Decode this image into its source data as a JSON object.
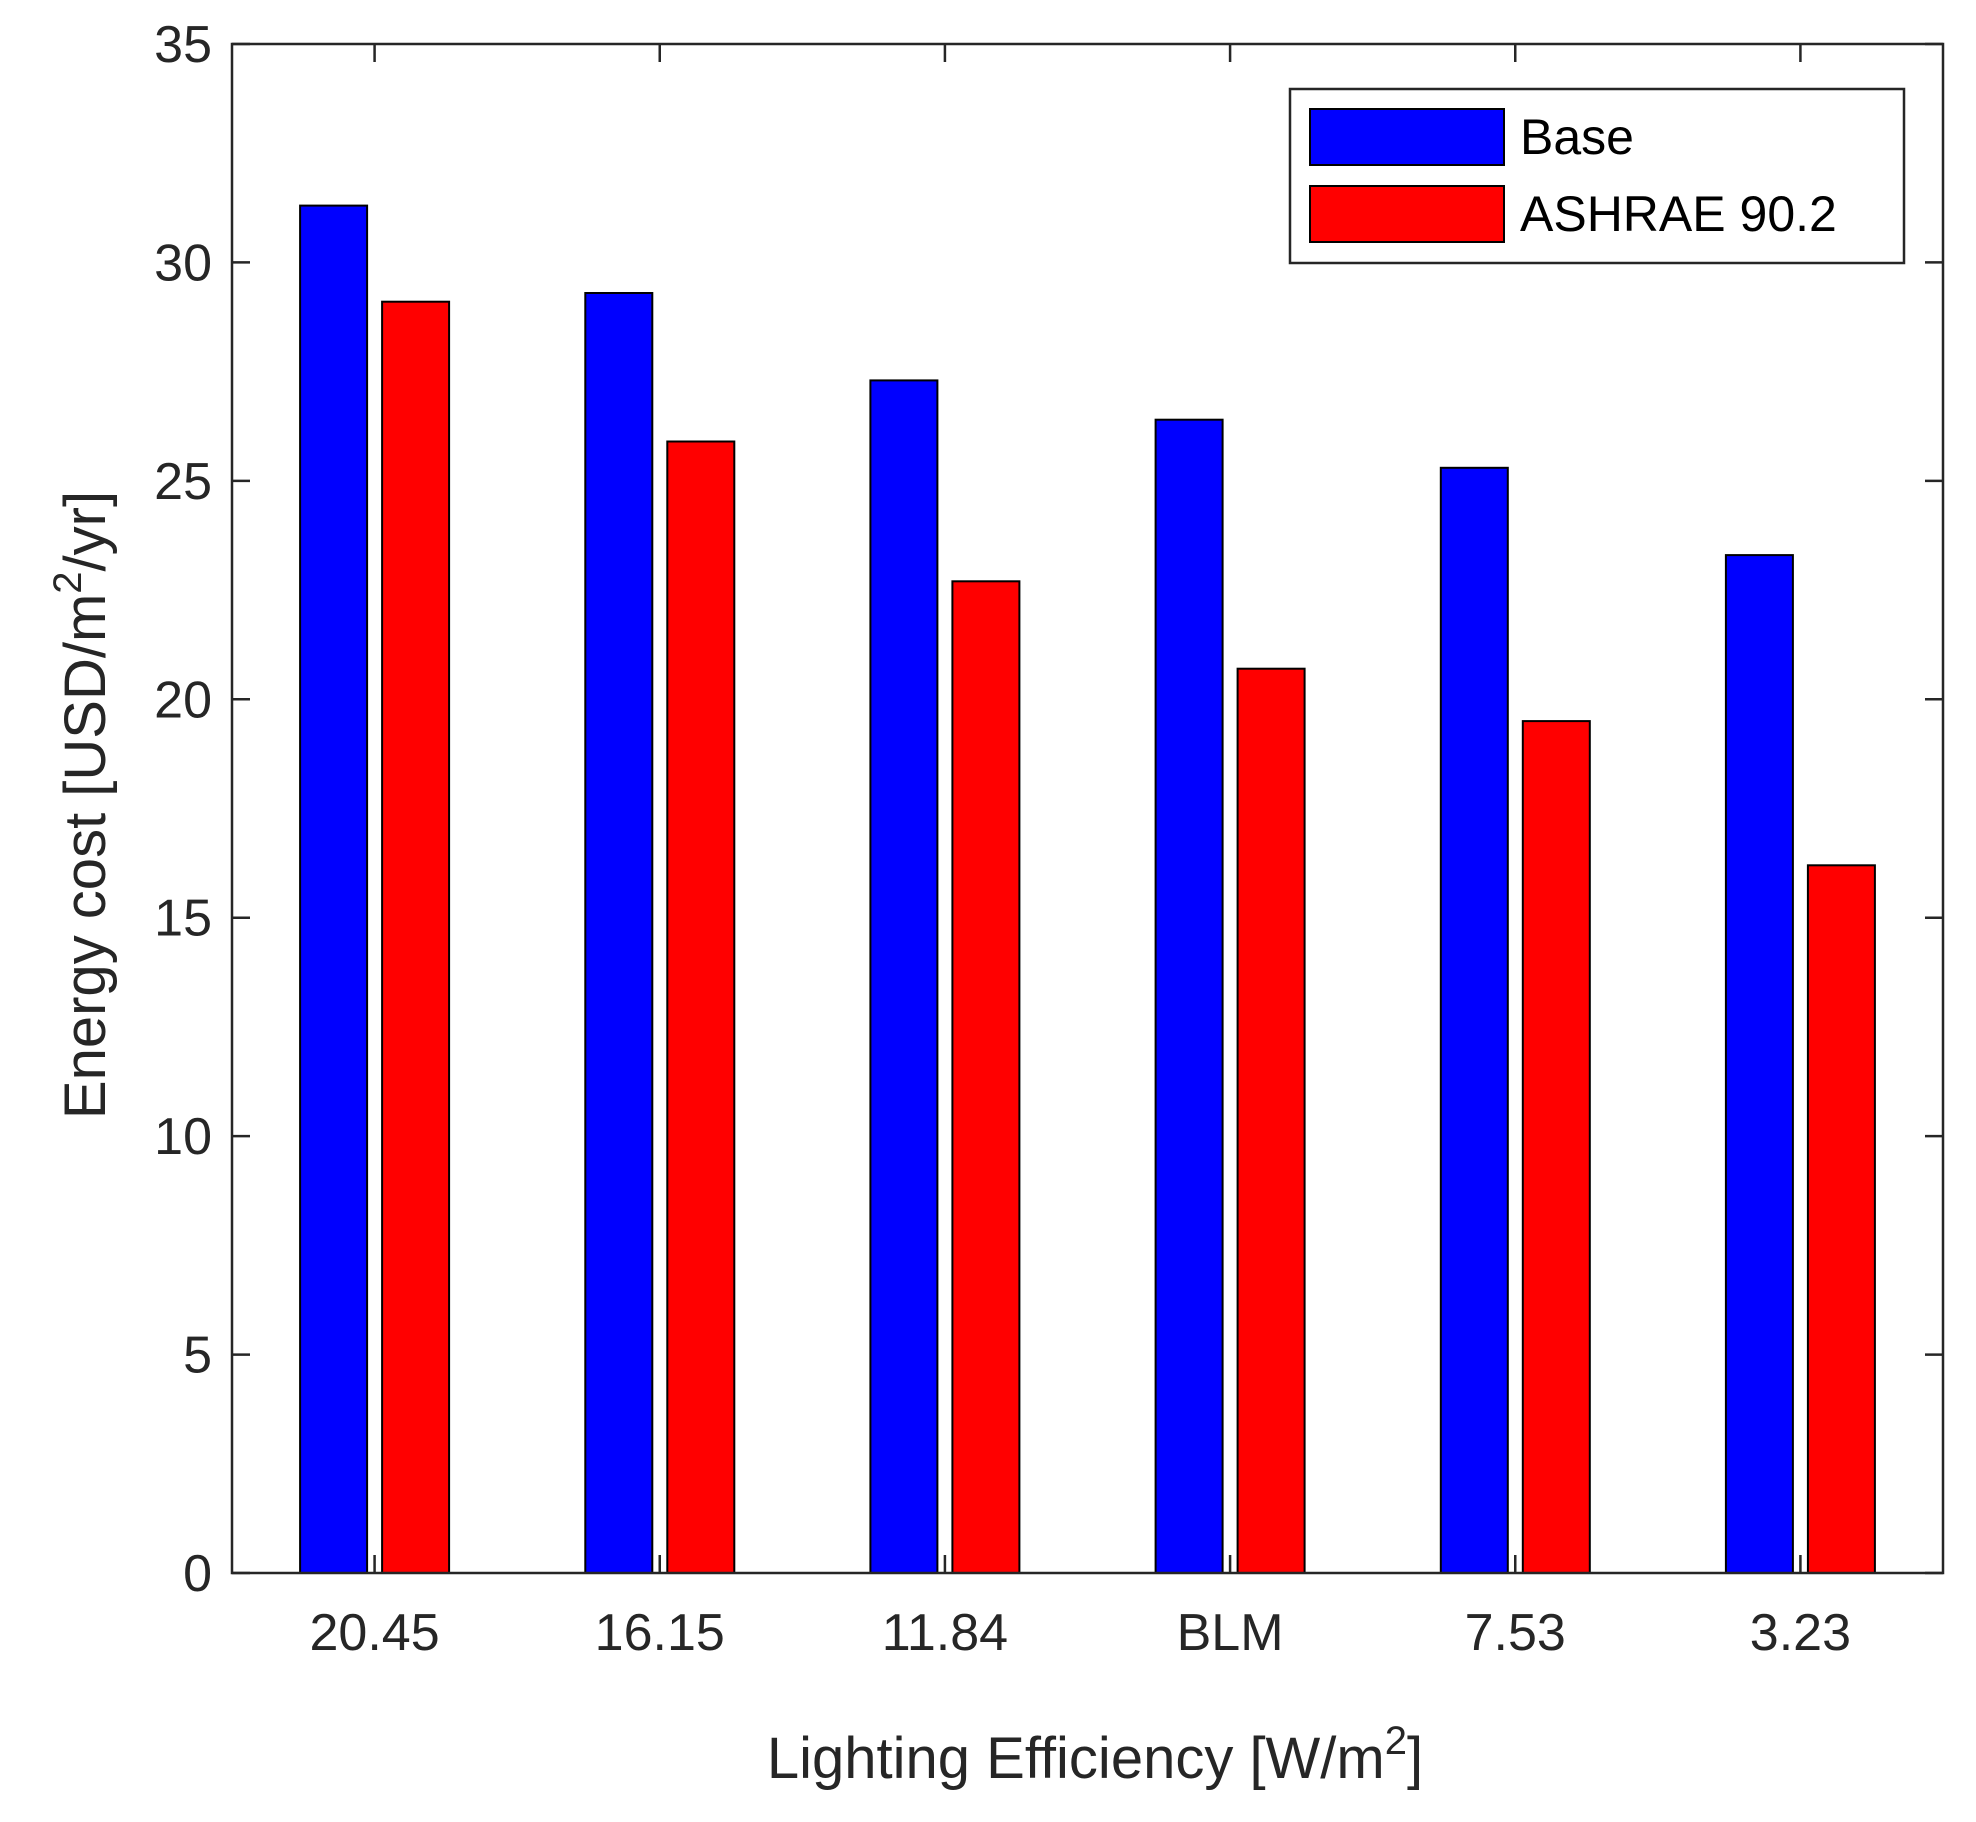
{
  "chart_data": {
    "type": "bar",
    "title": "",
    "xlabel": {
      "prefix": "Lighting Efficiency [W/m",
      "sup": "2",
      "suffix": "]"
    },
    "ylabel": {
      "prefix": "Energy cost [USD/m",
      "sup": "2",
      "suffix": "/yr]"
    },
    "categories": [
      "20.45",
      "16.15",
      "11.84",
      "BLM",
      "7.53",
      "3.23"
    ],
    "ylim": [
      0,
      35
    ],
    "yticks": [
      0,
      5,
      10,
      15,
      20,
      25,
      30,
      35
    ],
    "grid": false,
    "legend_position": "top-right",
    "series": [
      {
        "name": "Base",
        "color": "#0000ff",
        "values": [
          31.3,
          29.3,
          27.3,
          26.4,
          25.3,
          23.3
        ]
      },
      {
        "name": "ASHRAE 90.2",
        "color": "#ff0000",
        "values": [
          29.1,
          25.9,
          22.7,
          20.7,
          19.5,
          16.2
        ]
      }
    ]
  }
}
